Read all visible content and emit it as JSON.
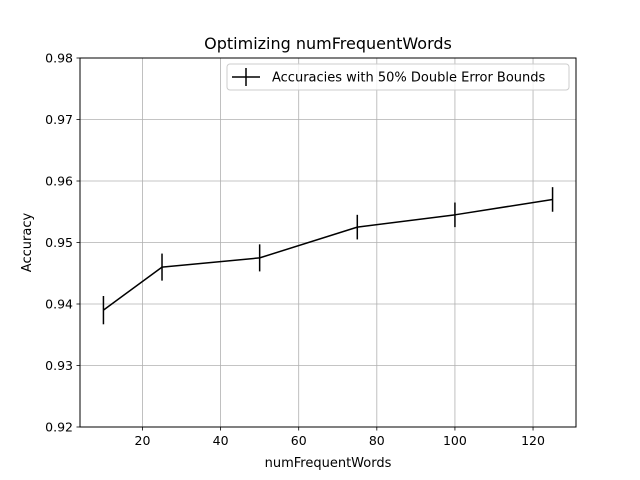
{
  "chart_data": {
    "type": "line",
    "title": "Optimizing numFrequentWords",
    "xlabel": "numFrequentWords",
    "ylabel": "Accuracy",
    "xlim": [
      4,
      131
    ],
    "ylim": [
      0.92,
      0.98
    ],
    "xticks": [
      20,
      40,
      60,
      80,
      100,
      120
    ],
    "yticks": [
      0.92,
      0.93,
      0.94,
      0.95,
      0.96,
      0.97,
      0.98
    ],
    "xtick_labels": [
      "20",
      "40",
      "60",
      "80",
      "100",
      "120"
    ],
    "ytick_labels": [
      "0.92",
      "0.93",
      "0.94",
      "0.95",
      "0.96",
      "0.97",
      "0.98"
    ],
    "grid": true,
    "legend_position": "top-right",
    "series": [
      {
        "name": "Accuracies with 50% Double Error Bounds",
        "color": "#000000",
        "x": [
          10,
          25,
          50,
          75,
          100,
          125
        ],
        "y": [
          0.939,
          0.946,
          0.9475,
          0.9525,
          0.9545,
          0.957
        ],
        "error": [
          0.0023,
          0.0022,
          0.0022,
          0.002,
          0.002,
          0.002
        ]
      }
    ]
  }
}
